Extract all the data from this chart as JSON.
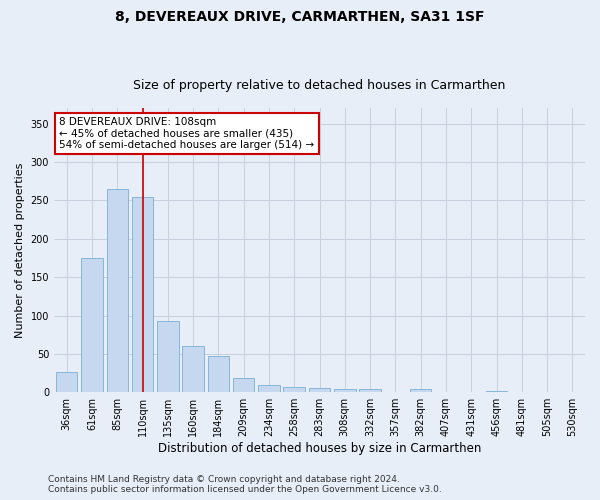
{
  "title": "8, DEVEREAUX DRIVE, CARMARTHEN, SA31 1SF",
  "subtitle": "Size of property relative to detached houses in Carmarthen",
  "xlabel": "Distribution of detached houses by size in Carmarthen",
  "ylabel": "Number of detached properties",
  "categories": [
    "36sqm",
    "61sqm",
    "85sqm",
    "110sqm",
    "135sqm",
    "160sqm",
    "184sqm",
    "209sqm",
    "234sqm",
    "258sqm",
    "283sqm",
    "308sqm",
    "332sqm",
    "357sqm",
    "382sqm",
    "407sqm",
    "431sqm",
    "456sqm",
    "481sqm",
    "505sqm",
    "530sqm"
  ],
  "values": [
    27,
    175,
    265,
    255,
    93,
    60,
    47,
    18,
    10,
    7,
    5,
    4,
    4,
    0,
    4,
    0,
    0,
    1,
    0,
    0,
    0
  ],
  "bar_color": "#c5d8ef",
  "bar_edge_color": "#7aafd4",
  "highlight_bar_index": 3,
  "highlight_line_color": "#cc0000",
  "annotation_line1": "8 DEVEREAUX DRIVE: 108sqm",
  "annotation_line2": "← 45% of detached houses are smaller (435)",
  "annotation_line3": "54% of semi-detached houses are larger (514) →",
  "annotation_box_color": "#ffffff",
  "annotation_box_edge": "#cc0000",
  "ylim": [
    0,
    370
  ],
  "yticks": [
    0,
    50,
    100,
    150,
    200,
    250,
    300,
    350
  ],
  "grid_color": "#c8d0e0",
  "bg_color": "#e8eef8",
  "plot_bg_color": "#e8eef8",
  "footer_line1": "Contains HM Land Registry data © Crown copyright and database right 2024.",
  "footer_line2": "Contains public sector information licensed under the Open Government Licence v3.0.",
  "title_fontsize": 10,
  "subtitle_fontsize": 9,
  "xlabel_fontsize": 8.5,
  "ylabel_fontsize": 8,
  "tick_fontsize": 7,
  "annotation_fontsize": 7.5,
  "footer_fontsize": 6.5
}
